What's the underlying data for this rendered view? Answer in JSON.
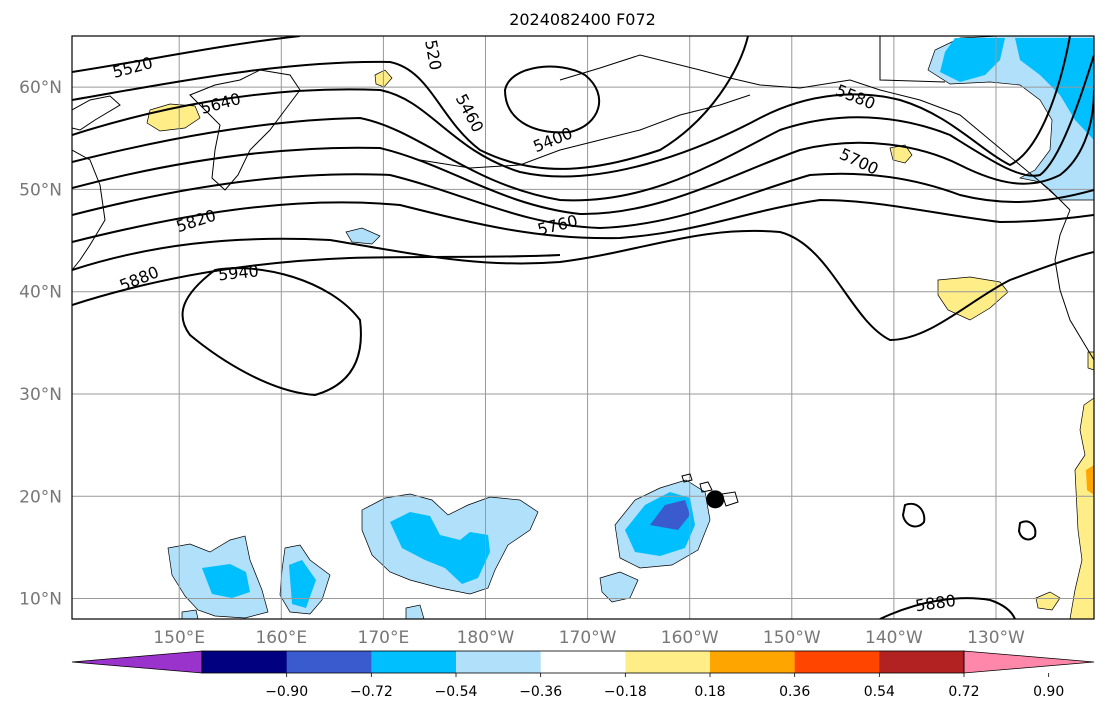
{
  "title": "2024082400 F072",
  "lat_ticks": [
    {
      "lat": 60,
      "label": "60°N"
    },
    {
      "lat": 50,
      "label": "50°N"
    },
    {
      "lat": 40,
      "label": "40°N"
    },
    {
      "lat": 30,
      "label": "30°N"
    },
    {
      "lat": 20,
      "label": "20°N"
    },
    {
      "lat": 10,
      "label": "10°N"
    }
  ],
  "lon_ticks": [
    {
      "lon": 150,
      "label": "150°E"
    },
    {
      "lon": 160,
      "label": "160°E"
    },
    {
      "lon": 170,
      "label": "170°E"
    },
    {
      "lon": 180,
      "label": "180°W"
    },
    {
      "lon": 190,
      "label": "170°W"
    },
    {
      "lon": 200,
      "label": "160°W"
    },
    {
      "lon": 210,
      "label": "150°W"
    },
    {
      "lon": 220,
      "label": "140°W"
    },
    {
      "lon": 230,
      "label": "130°W"
    }
  ],
  "contour_labels": [
    "5520",
    "5640",
    "5820",
    "5880",
    "5940",
    "5460",
    "5400",
    "5760",
    "5580",
    "5700",
    "5880",
    "520"
  ],
  "colorbar": {
    "colors": [
      "#9933cc",
      "#000080",
      "#3a5bcd",
      "#00bfff",
      "#b0e0fa",
      "#ffffff",
      "#ffee88",
      "#ffa500",
      "#ff4500",
      "#b22222",
      "#ff88aa"
    ],
    "labels": [
      "−0.90",
      "−0.72",
      "−0.54",
      "−0.36",
      "−0.18",
      "0.18",
      "0.36",
      "0.54",
      "0.72",
      "0.90"
    ]
  },
  "marker": {
    "lon": 202.5,
    "lat": 19.7,
    "color": "#000000"
  }
}
